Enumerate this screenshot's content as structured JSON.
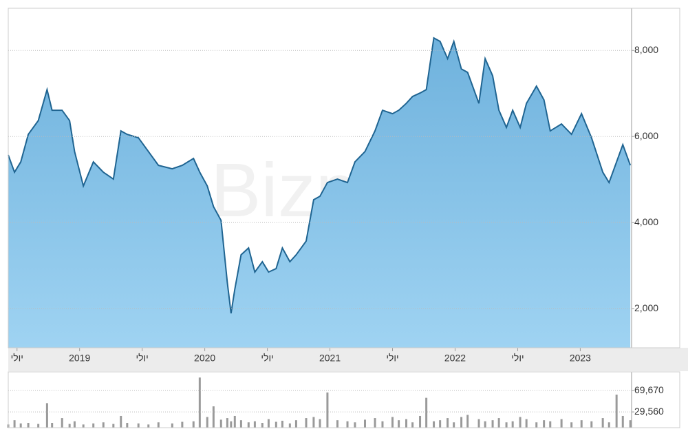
{
  "chart_data": [
    {
      "type": "area",
      "watermark": "Bizportal",
      "color": "#1f6491",
      "fill": "#8fcbef",
      "x": [
        2018.43,
        2018.48,
        2018.53,
        2018.59,
        2018.67,
        2018.74,
        2018.78,
        2018.86,
        2018.92,
        2018.96,
        2019.03,
        2019.11,
        2019.19,
        2019.27,
        2019.33,
        2019.38,
        2019.47,
        2019.55,
        2019.63,
        2019.74,
        2019.82,
        2019.91,
        2019.96,
        2020.02,
        2020.07,
        2020.13,
        2020.18,
        2020.21,
        2020.24,
        2020.29,
        2020.35,
        2020.4,
        2020.46,
        2020.51,
        2020.57,
        2020.62,
        2020.68,
        2020.73,
        2020.81,
        2020.87,
        2020.92,
        2020.98,
        2021.06,
        2021.14,
        2021.2,
        2021.28,
        2021.36,
        2021.42,
        2021.5,
        2021.55,
        2021.61,
        2021.66,
        2021.72,
        2021.77,
        2021.83,
        2021.88,
        2021.94,
        2021.99,
        2022.05,
        2022.1,
        2022.19,
        2022.24,
        2022.3,
        2022.35,
        2022.41,
        2022.46,
        2022.52,
        2022.57,
        2022.65,
        2022.71,
        2022.76,
        2022.85,
        2022.93,
        2023.01,
        2023.09,
        2023.18,
        2023.23,
        2023.29,
        2023.34,
        2023.4
      ],
      "values": [
        5570,
        5170,
        5410,
        6050,
        6370,
        7090,
        6610,
        6610,
        6370,
        5650,
        4850,
        5410,
        5170,
        5010,
        6130,
        6050,
        5970,
        5650,
        5330,
        5250,
        5330,
        5490,
        5170,
        4850,
        4370,
        4050,
        2610,
        1890,
        2450,
        3250,
        3410,
        2850,
        3090,
        2850,
        2930,
        3410,
        3090,
        3250,
        3570,
        4530,
        4610,
        4930,
        5010,
        4930,
        5410,
        5650,
        6130,
        6610,
        6530,
        6610,
        6770,
        6930,
        7010,
        7090,
        8290,
        8210,
        7810,
        8210,
        7570,
        7490,
        6770,
        7810,
        7410,
        6610,
        6210,
        6610,
        6210,
        6770,
        7170,
        6850,
        6130,
        6290,
        6050,
        6530,
        5970,
        5170,
        4930,
        5410,
        5810,
        5330
      ],
      "xlim": [
        2018.43,
        2023.41
      ],
      "xticks": [
        {
          "value": 2018.5,
          "label": "יולי"
        },
        2019,
        {
          "value": 2019.5,
          "label": "יולי"
        },
        2020,
        {
          "value": 2020.5,
          "label": "יולי"
        },
        2021,
        {
          "value": 2021.5,
          "label": "יולי"
        },
        2022,
        {
          "value": 2022.5,
          "label": "יולי"
        },
        2023
      ],
      "ylim": [
        1090,
        8980
      ],
      "yticks": [
        {
          "value": 2000,
          "label": "2,000"
        },
        {
          "value": 4000,
          "label": "4,000"
        },
        {
          "value": 6000,
          "label": "6,000"
        },
        {
          "value": 8000,
          "label": "8,000"
        }
      ],
      "grid": true
    },
    {
      "type": "volume",
      "color": "#9a9a9a",
      "x": [
        2018.43,
        2018.48,
        2018.53,
        2018.59,
        2018.67,
        2018.74,
        2018.78,
        2018.86,
        2018.92,
        2018.96,
        2019.03,
        2019.11,
        2019.19,
        2019.27,
        2019.33,
        2019.38,
        2019.47,
        2019.55,
        2019.63,
        2019.74,
        2019.82,
        2019.91,
        2019.96,
        2020.02,
        2020.07,
        2020.13,
        2020.18,
        2020.21,
        2020.24,
        2020.29,
        2020.35,
        2020.4,
        2020.46,
        2020.51,
        2020.57,
        2020.62,
        2020.68,
        2020.73,
        2020.81,
        2020.87,
        2020.92,
        2020.98,
        2021.06,
        2021.14,
        2021.2,
        2021.28,
        2021.36,
        2021.42,
        2021.5,
        2021.55,
        2021.61,
        2021.66,
        2021.72,
        2021.77,
        2021.83,
        2021.88,
        2021.94,
        2021.99,
        2022.05,
        2022.1,
        2022.19,
        2022.24,
        2022.3,
        2022.35,
        2022.41,
        2022.46,
        2022.52,
        2022.57,
        2022.65,
        2022.71,
        2022.76,
        2022.85,
        2022.93,
        2023.01,
        2023.09,
        2023.18,
        2023.23,
        2023.29,
        2023.34,
        2023.4
      ],
      "values": [
        6000,
        14000,
        8000,
        9000,
        7000,
        46000,
        9000,
        18000,
        7000,
        12000,
        6000,
        8000,
        10000,
        7000,
        22000,
        9000,
        8000,
        6000,
        10000,
        8000,
        11000,
        12000,
        94000,
        20000,
        40000,
        15000,
        18000,
        12000,
        22000,
        14000,
        10000,
        12000,
        9000,
        16000,
        11000,
        13000,
        8000,
        14000,
        18000,
        20000,
        16000,
        66000,
        14000,
        12000,
        10000,
        15000,
        18000,
        12000,
        20000,
        14000,
        16000,
        10000,
        22000,
        56000,
        12000,
        14000,
        18000,
        10000,
        20000,
        24000,
        16000,
        12000,
        14000,
        18000,
        10000,
        12000,
        20000,
        16000,
        10000,
        14000,
        12000,
        16000,
        10000,
        14000,
        12000,
        18000,
        10000,
        62000,
        22000,
        14000
      ],
      "xlim": [
        2018.43,
        2023.41
      ],
      "ylim": [
        0,
        104600
      ],
      "yticks": [
        {
          "value": 29560,
          "label": "29,560"
        },
        {
          "value": 69670,
          "label": "69,670"
        }
      ],
      "grid": true
    }
  ]
}
